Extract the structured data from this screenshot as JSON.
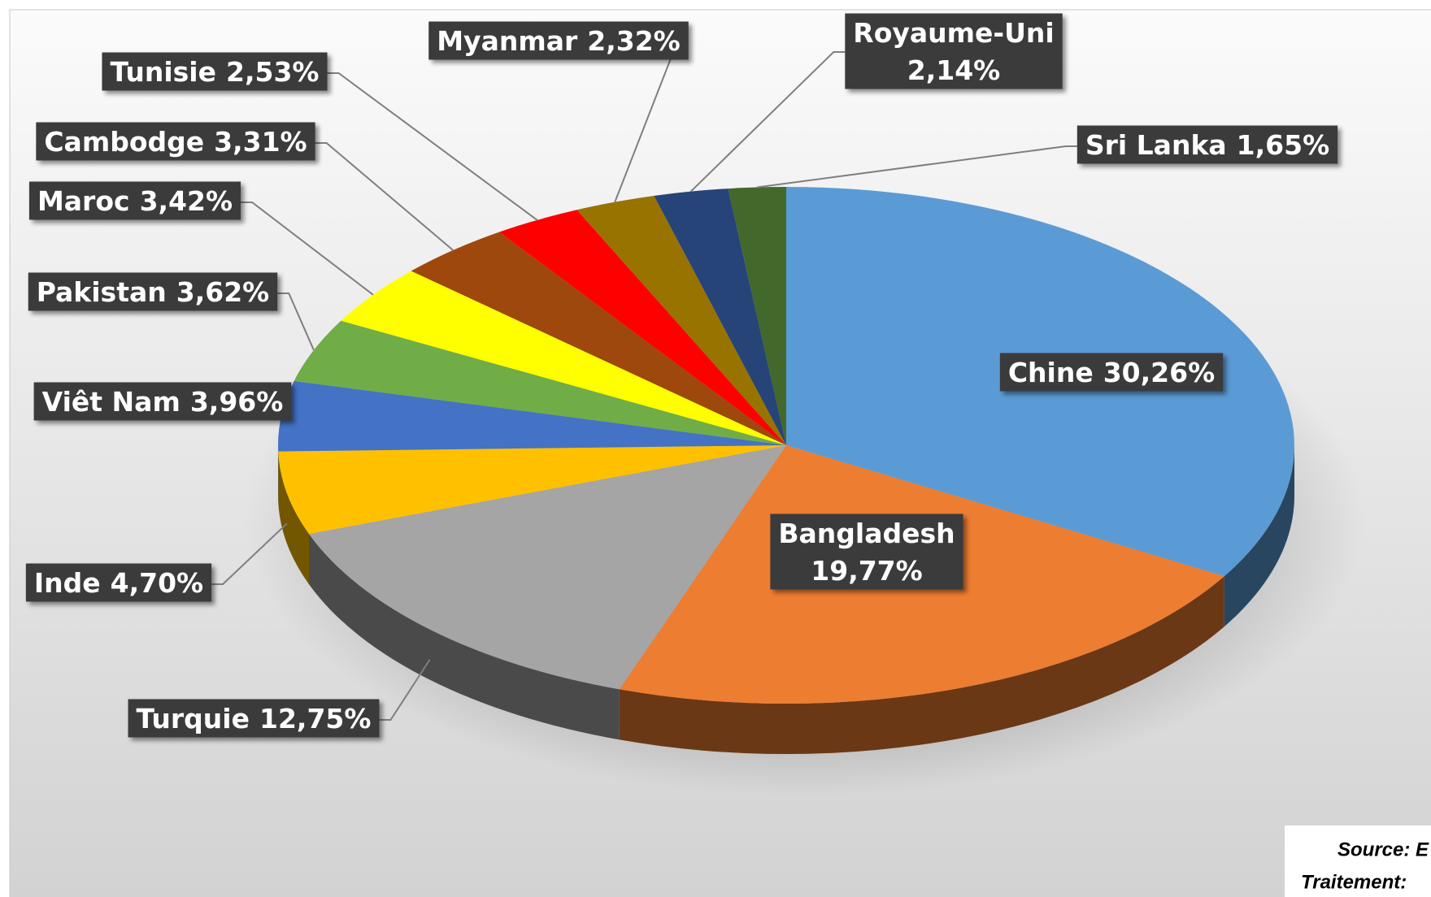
{
  "chart_data": {
    "type": "pie3d",
    "categories": [
      "Chine",
      "Bangladesh",
      "Turquie",
      "Inde",
      "Viêt Nam",
      "Pakistan",
      "Maroc",
      "Cambodge",
      "Tunisie",
      "Myanmar",
      "Royaume-Uni",
      "Sri Lanka"
    ],
    "values": [
      30.26,
      19.77,
      12.75,
      4.7,
      3.96,
      3.62,
      3.42,
      3.31,
      2.53,
      2.32,
      2.14,
      1.65
    ],
    "value_labels": [
      "30,26%",
      "19,77%",
      "12,75%",
      "4,70%",
      "3,96%",
      "3,62%",
      "3,42%",
      "3,31%",
      "2,53%",
      "2,32%",
      "2,14%",
      "1,65%"
    ],
    "colors": [
      "#5b9bd5",
      "#ed7d31",
      "#a5a5a5",
      "#ffc000",
      "#4472c4",
      "#70ad47",
      "#ffff00",
      "#9e480e",
      "#ff0000",
      "#997300",
      "#264478",
      "#43682b"
    ],
    "source": "Source: E",
    "treatment": "Traitement:"
  }
}
